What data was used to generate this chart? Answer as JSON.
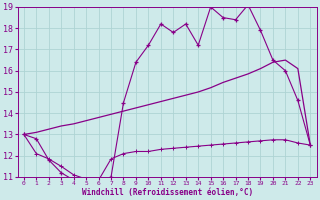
{
  "background_color": "#ceeaea",
  "grid_color": "#aed4d4",
  "line_color": "#880088",
  "xlabel": "Windchill (Refroidissement éolien,°C)",
  "xlim": [
    -0.5,
    23.5
  ],
  "ylim": [
    11,
    19
  ],
  "yticks": [
    11,
    12,
    13,
    14,
    15,
    16,
    17,
    18,
    19
  ],
  "xticks": [
    0,
    1,
    2,
    3,
    4,
    5,
    6,
    7,
    8,
    9,
    10,
    11,
    12,
    13,
    14,
    15,
    16,
    17,
    18,
    19,
    20,
    21,
    22,
    23
  ],
  "line1_x": [
    0,
    1,
    2,
    3,
    4,
    5,
    6,
    7,
    8,
    9,
    10,
    11,
    12,
    13,
    14,
    15,
    16,
    17,
    18,
    19,
    20,
    21,
    22,
    23
  ],
  "line1_y": [
    13.0,
    12.8,
    11.8,
    11.2,
    10.85,
    10.8,
    10.8,
    11.0,
    14.5,
    16.4,
    17.2,
    18.2,
    17.8,
    18.2,
    17.2,
    19.0,
    18.5,
    18.4,
    19.1,
    17.9,
    16.5,
    16.0,
    14.6,
    12.5
  ],
  "line2_x": [
    0,
    1,
    2,
    3,
    4,
    5,
    6,
    7,
    8,
    9,
    10,
    11,
    12,
    13,
    14,
    15,
    16,
    17,
    18,
    19,
    20,
    21,
    22,
    23
  ],
  "line2_y": [
    13.0,
    13.1,
    13.25,
    13.4,
    13.5,
    13.65,
    13.8,
    13.95,
    14.1,
    14.25,
    14.4,
    14.55,
    14.7,
    14.85,
    15.0,
    15.2,
    15.45,
    15.65,
    15.85,
    16.1,
    16.4,
    16.5,
    16.1,
    12.5
  ],
  "line3_x": [
    0,
    1,
    2,
    3,
    4,
    5,
    6,
    7,
    8,
    9,
    10,
    11,
    12,
    13,
    14,
    15,
    16,
    17,
    18,
    19,
    20,
    21,
    22,
    23
  ],
  "line3_y": [
    13.0,
    12.1,
    11.85,
    11.5,
    11.1,
    10.9,
    10.85,
    11.85,
    12.1,
    12.2,
    12.2,
    12.3,
    12.35,
    12.4,
    12.45,
    12.5,
    12.55,
    12.6,
    12.65,
    12.7,
    12.75,
    12.75,
    12.6,
    12.5
  ]
}
